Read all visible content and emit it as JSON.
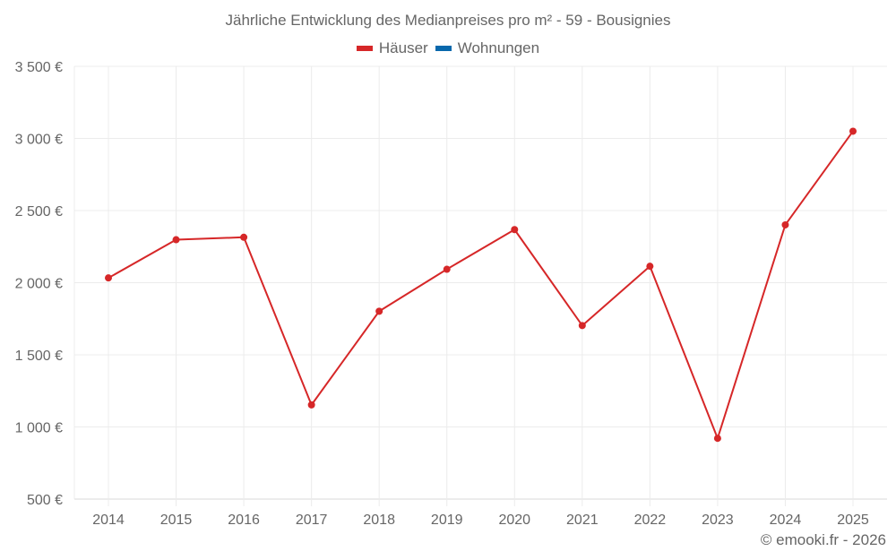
{
  "chart_data": {
    "type": "line",
    "title": "Jährliche Entwicklung des Medianpreises pro m² - 59 - Bousignies",
    "xlabel": "",
    "ylabel": "",
    "categories": [
      "2014",
      "2015",
      "2016",
      "2017",
      "2018",
      "2019",
      "2020",
      "2021",
      "2022",
      "2023",
      "2024",
      "2025"
    ],
    "series": [
      {
        "name": "Häuser",
        "color": "#d62728",
        "values": [
          2033,
          2298,
          2315,
          1153,
          1802,
          2093,
          2368,
          1703,
          2114,
          921,
          2401,
          3050
        ]
      },
      {
        "name": "Wohnungen",
        "color": "#0868ac",
        "values": []
      }
    ],
    "ylim": [
      500,
      3500
    ],
    "yticks": [
      500,
      1000,
      1500,
      2000,
      2500,
      3000,
      3500
    ],
    "ytick_labels": [
      "500 €",
      "1 000 €",
      "1 500 €",
      "2 000 €",
      "2 500 €",
      "3 000 €",
      "3 500 €"
    ],
    "grid": true,
    "legend_position": "top"
  },
  "title": "Jährliche Entwicklung des Medianpreises pro m² - 59 - Bousignies",
  "legend": [
    {
      "label": "Häuser",
      "color": "#d62728"
    },
    {
      "label": "Wohnungen",
      "color": "#0868ac"
    }
  ],
  "credit": "© emooki.fr - 2026"
}
